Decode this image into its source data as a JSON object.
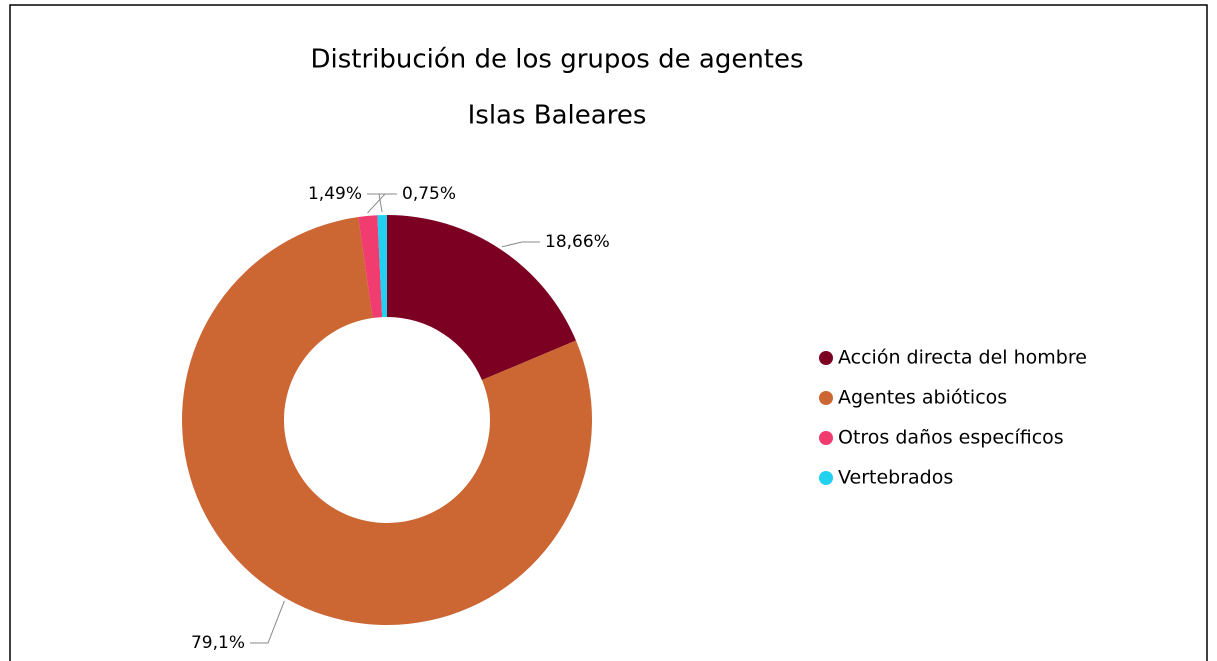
{
  "chart_data": {
    "type": "donut",
    "title": "Distribución de los grupos de agentes",
    "subtitle": "Islas Baleares",
    "categories": [
      "Acción directa del hombre",
      "Agentes abióticos",
      "Otros daños específicos",
      "Vertebrados"
    ],
    "values": [
      18.66,
      79.1,
      1.49,
      0.75
    ],
    "value_labels": [
      "18,66%",
      "79,1%",
      "1,49%",
      "0,75%"
    ],
    "colors": [
      "#7b0022",
      "#cc6633",
      "#f03c6e",
      "#22d0f0"
    ],
    "legend": "right"
  }
}
